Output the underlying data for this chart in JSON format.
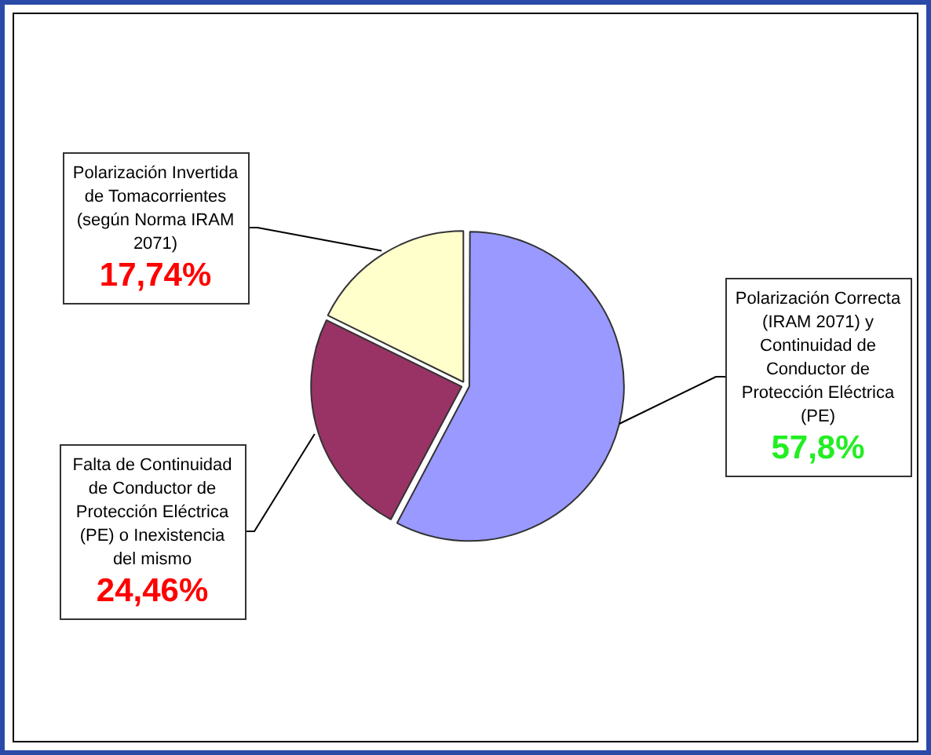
{
  "chart_data": {
    "type": "pie",
    "categories": [
      "Polarización Correcta (IRAM 2071) y Continuidad de Conductor de Protección Eléctrica (PE)",
      "Falta de Continuidad de Conductor de Protección Eléctrica (PE) o Inexistencia del mismo",
      "Polarización Invertida de Tomacorrientes (según Norma IRAM 2071)"
    ],
    "values": [
      57.8,
      24.46,
      17.74
    ],
    "colors": [
      "#9999ff",
      "#993366",
      "#ffffcc"
    ],
    "value_labels": [
      "57,8%",
      "24,46%",
      "17,74%"
    ],
    "legend": false
  }
}
